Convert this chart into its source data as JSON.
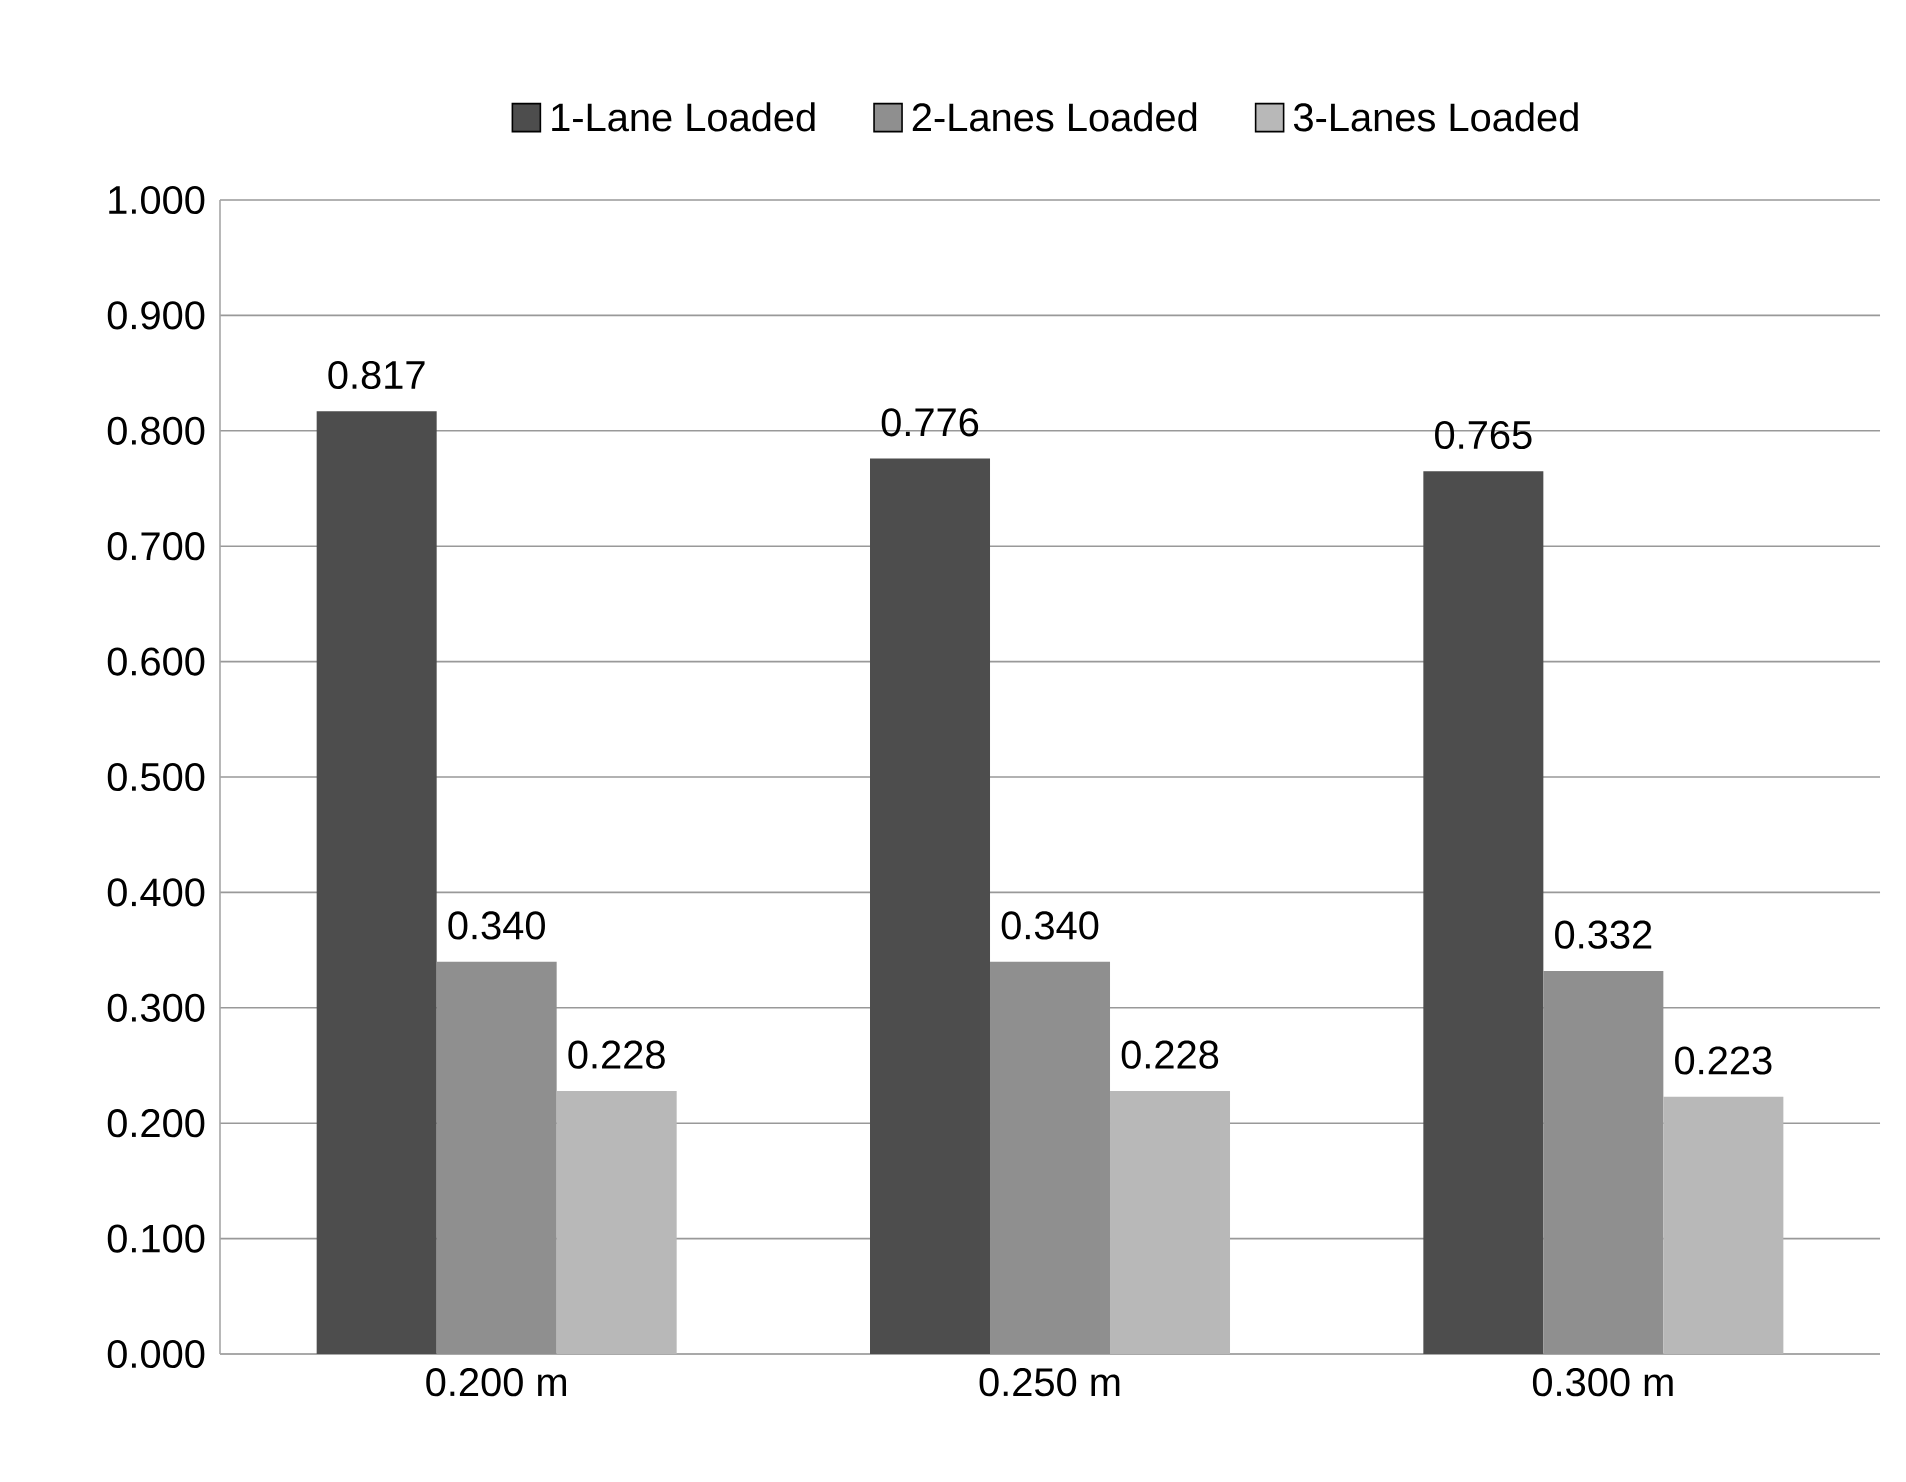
{
  "chart_data": {
    "type": "bar",
    "categories": [
      "0.200 m",
      "0.250 m",
      "0.300 m"
    ],
    "series": [
      {
        "name": "1-Lane Loaded",
        "color": "#4d4d4d",
        "values": [
          0.817,
          0.776,
          0.765
        ],
        "value_labels": [
          "0.817",
          "0.776",
          "0.765"
        ]
      },
      {
        "name": "2-Lanes Loaded",
        "color": "#8f8f8f",
        "values": [
          0.34,
          0.34,
          0.332
        ],
        "value_labels": [
          "0.340",
          "0.340",
          "0.332"
        ]
      },
      {
        "name": "3-Lanes Loaded",
        "color": "#b8b8b8",
        "values": [
          0.228,
          0.228,
          0.223
        ],
        "value_labels": [
          "0.228",
          "0.228",
          "0.223"
        ]
      }
    ],
    "ylim": [
      0,
      1
    ],
    "yticks": [
      {
        "value": 0,
        "label": "0.000"
      },
      {
        "value": 0.1,
        "label": "0.100"
      },
      {
        "value": 0.2,
        "label": "0.200"
      },
      {
        "value": 0.3,
        "label": "0.300"
      },
      {
        "value": 0.4,
        "label": "0.400"
      },
      {
        "value": 0.5,
        "label": "0.500"
      },
      {
        "value": 0.6,
        "label": "0.600"
      },
      {
        "value": 0.7,
        "label": "0.700"
      },
      {
        "value": 0.8,
        "label": "0.800"
      },
      {
        "value": 0.9,
        "label": "0.900"
      },
      {
        "value": 1,
        "label": "1.000"
      }
    ],
    "grid": "y",
    "legend": "top"
  }
}
